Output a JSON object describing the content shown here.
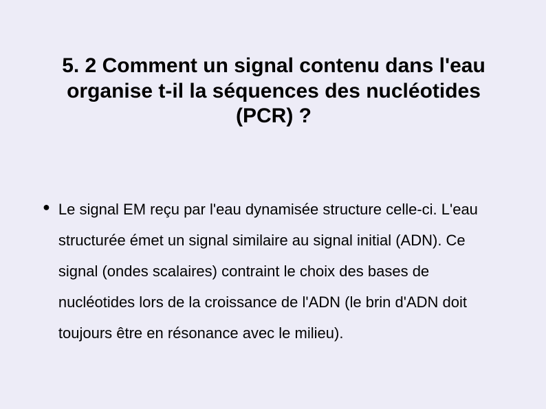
{
  "slide": {
    "background_color": "#edecf7",
    "title": "5. 2  Comment un signal contenu dans l'eau organise t-il la séquences des nucléotides (PCR) ?",
    "title_fontsize": 30,
    "title_fontweight": "bold",
    "bullet_glyph": "●",
    "body_fontsize": 22,
    "body_text": "Le signal EM reçu par l'eau dynamisée structure celle-ci. L'eau structurée émet un signal similaire au signal initial (ADN). Ce signal (ondes scalaires) contraint le choix des bases de nucléotides lors de la croissance de l'ADN (le brin d'ADN doit toujours être en résonance avec le milieu)."
  }
}
